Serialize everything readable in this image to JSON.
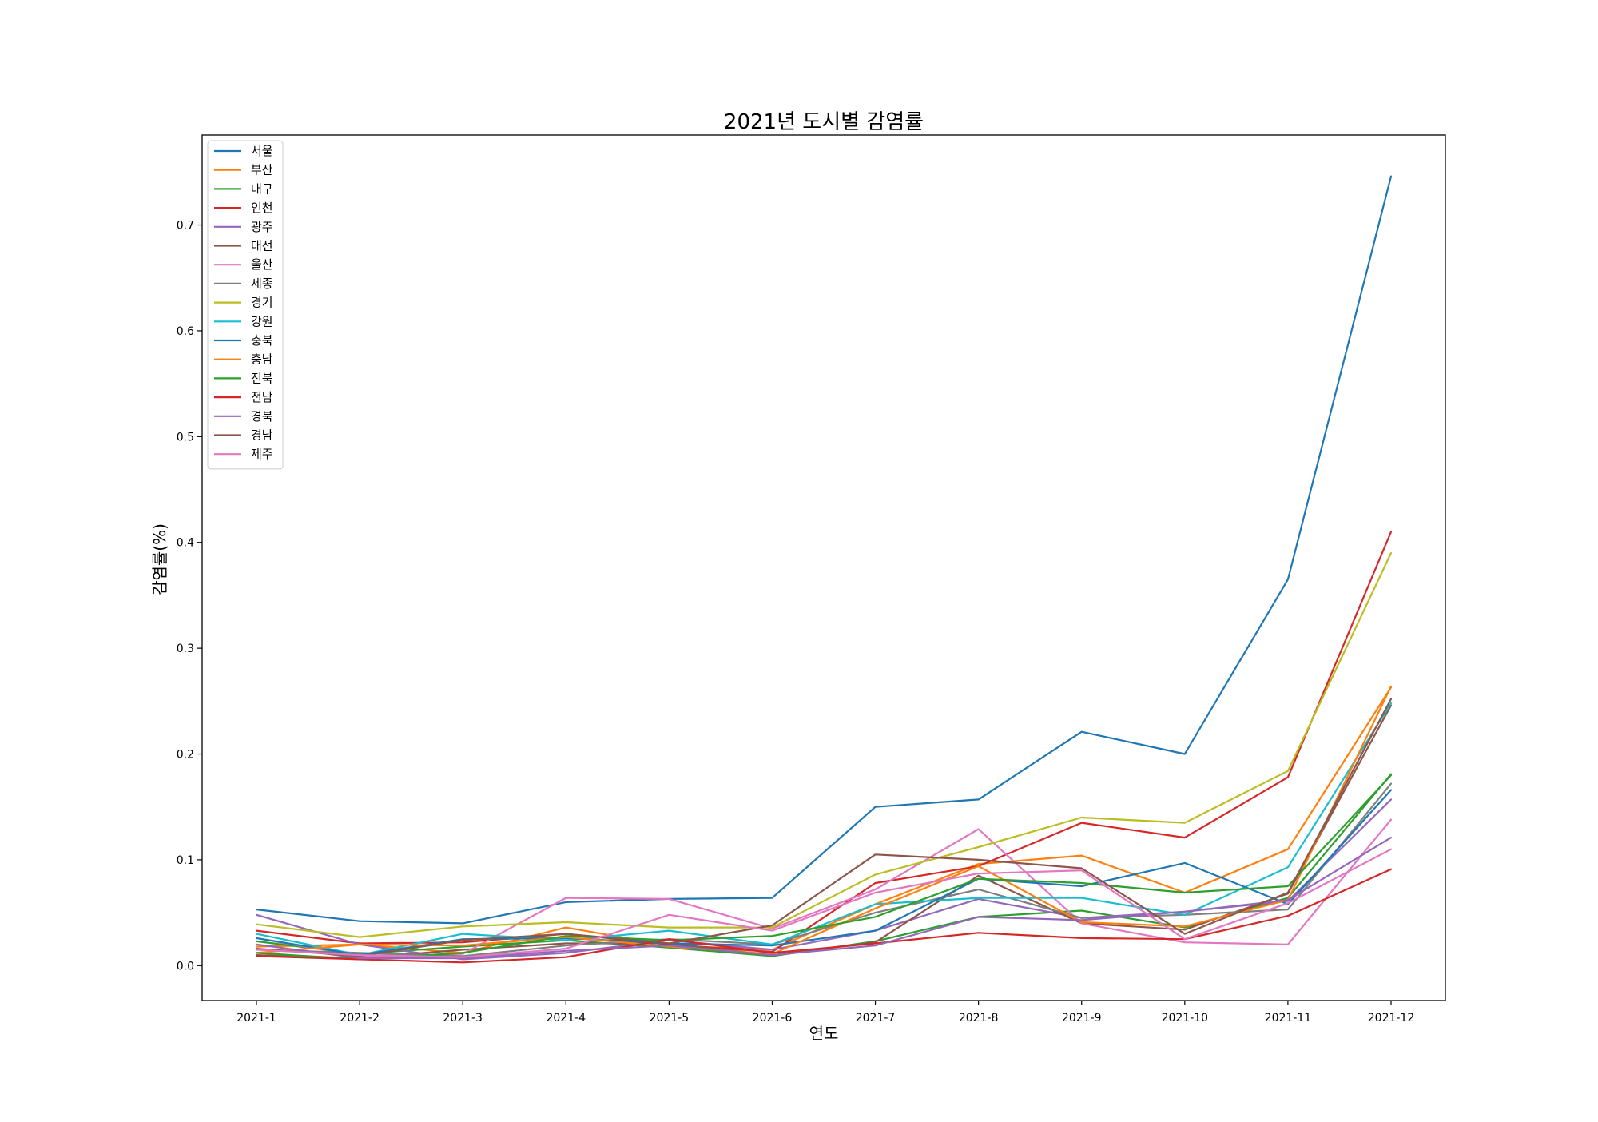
{
  "chart_data": {
    "type": "line",
    "title": "2021년 도시별 감염률",
    "xlabel": "연도",
    "ylabel": "감염률(%)",
    "categories": [
      "2021-1",
      "2021-2",
      "2021-3",
      "2021-4",
      "2021-5",
      "2021-6",
      "2021-7",
      "2021-8",
      "2021-9",
      "2021-10",
      "2021-11",
      "2021-12"
    ],
    "ylim": [
      -0.033,
      0.785
    ],
    "yticks": [
      0.0,
      0.1,
      0.2,
      0.3,
      0.4,
      0.5,
      0.6,
      0.7
    ],
    "ytick_labels": [
      "0.0",
      "0.1",
      "0.2",
      "0.3",
      "0.4",
      "0.5",
      "0.6",
      "0.7"
    ],
    "grid": false,
    "legend_position": "top-left",
    "series": [
      {
        "name": "서울",
        "color": "#1f77b4",
        "values": [
          0.053,
          0.042,
          0.04,
          0.06,
          0.063,
          0.064,
          0.15,
          0.157,
          0.221,
          0.2,
          0.365,
          0.746
        ]
      },
      {
        "name": "부산",
        "color": "#ff7f0e",
        "values": [
          0.018,
          0.02,
          0.012,
          0.036,
          0.019,
          0.015,
          0.058,
          0.096,
          0.104,
          0.069,
          0.11,
          0.263
        ]
      },
      {
        "name": "대구",
        "color": "#2ca02c",
        "values": [
          0.023,
          0.011,
          0.018,
          0.024,
          0.017,
          0.009,
          0.023,
          0.046,
          0.052,
          0.036,
          0.064,
          0.181
        ]
      },
      {
        "name": "인천",
        "color": "#d62728",
        "values": [
          0.033,
          0.021,
          0.022,
          0.03,
          0.02,
          0.013,
          0.078,
          0.094,
          0.135,
          0.121,
          0.178,
          0.41
        ]
      },
      {
        "name": "광주",
        "color": "#9467bd",
        "values": [
          0.048,
          0.02,
          0.006,
          0.012,
          0.024,
          0.015,
          0.033,
          0.063,
          0.045,
          0.051,
          0.061,
          0.157
        ]
      },
      {
        "name": "대전",
        "color": "#8c564b",
        "values": [
          0.01,
          0.007,
          0.015,
          0.021,
          0.021,
          0.01,
          0.022,
          0.085,
          0.04,
          0.034,
          0.068,
          0.246
        ]
      },
      {
        "name": "울산",
        "color": "#e377c2",
        "values": [
          0.026,
          0.009,
          0.011,
          0.064,
          0.063,
          0.035,
          0.072,
          0.129,
          0.04,
          0.022,
          0.02,
          0.138
        ]
      },
      {
        "name": "세종",
        "color": "#7f7f7f",
        "values": [
          0.015,
          0.012,
          0.009,
          0.019,
          0.025,
          0.02,
          0.05,
          0.072,
          0.045,
          0.048,
          0.053,
          0.172
        ]
      },
      {
        "name": "경기",
        "color": "#bcbd22",
        "values": [
          0.039,
          0.027,
          0.037,
          0.041,
          0.036,
          0.036,
          0.086,
          0.112,
          0.14,
          0.135,
          0.184,
          0.39
        ]
      },
      {
        "name": "강원",
        "color": "#17becf",
        "values": [
          0.03,
          0.01,
          0.03,
          0.024,
          0.033,
          0.02,
          0.058,
          0.064,
          0.064,
          0.048,
          0.093,
          0.248
        ]
      },
      {
        "name": "충북",
        "color": "#1f77b4",
        "values": [
          0.026,
          0.01,
          0.025,
          0.026,
          0.021,
          0.019,
          0.033,
          0.082,
          0.075,
          0.097,
          0.058,
          0.166
        ]
      },
      {
        "name": "충남",
        "color": "#ff7f0e",
        "values": [
          0.012,
          0.02,
          0.019,
          0.027,
          0.018,
          0.011,
          0.054,
          0.094,
          0.041,
          0.037,
          0.062,
          0.264
        ]
      },
      {
        "name": "전북",
        "color": "#2ca02c",
        "values": [
          0.012,
          0.006,
          0.012,
          0.028,
          0.024,
          0.028,
          0.046,
          0.082,
          0.078,
          0.069,
          0.075,
          0.18
        ]
      },
      {
        "name": "전남",
        "color": "#d62728",
        "values": [
          0.009,
          0.006,
          0.003,
          0.008,
          0.025,
          0.012,
          0.021,
          0.031,
          0.026,
          0.025,
          0.047,
          0.091
        ]
      },
      {
        "name": "경북",
        "color": "#9467bd",
        "values": [
          0.02,
          0.007,
          0.007,
          0.014,
          0.019,
          0.01,
          0.019,
          0.046,
          0.043,
          0.051,
          0.062,
          0.121
        ]
      },
      {
        "name": "경남",
        "color": "#8c564b",
        "values": [
          0.016,
          0.009,
          0.024,
          0.03,
          0.021,
          0.038,
          0.105,
          0.1,
          0.092,
          0.03,
          0.069,
          0.252
        ]
      },
      {
        "name": "제주",
        "color": "#e377c2",
        "values": [
          0.015,
          0.01,
          0.008,
          0.016,
          0.048,
          0.033,
          0.069,
          0.087,
          0.09,
          0.025,
          0.059,
          0.11
        ]
      }
    ]
  }
}
